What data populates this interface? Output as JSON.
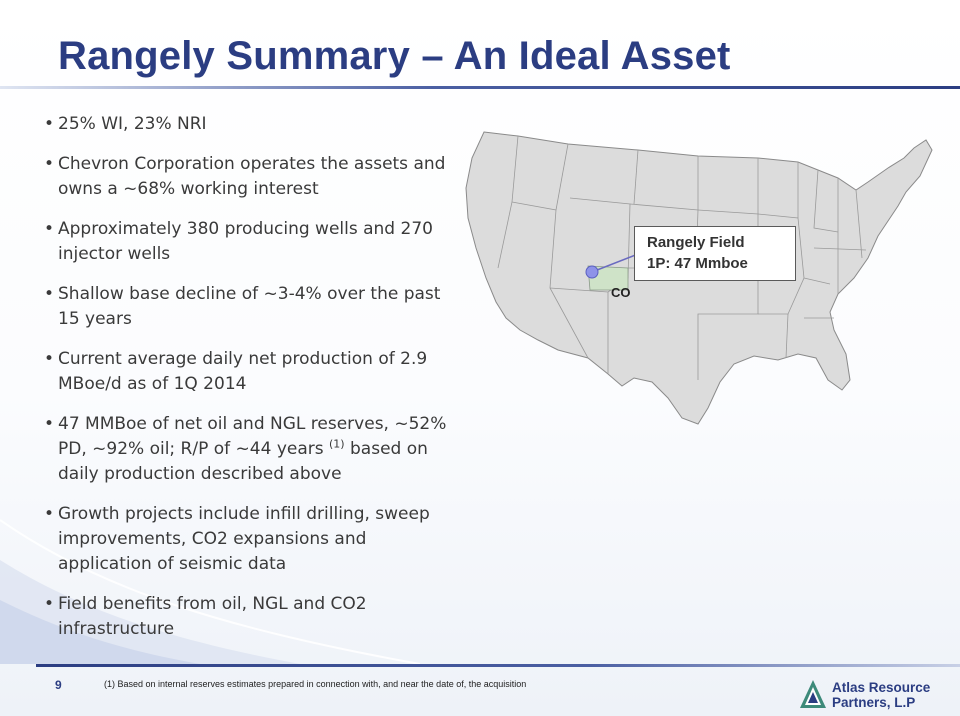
{
  "slide": {
    "title": "Rangely Summary – An Ideal Asset",
    "page_number": "9"
  },
  "bullets": [
    {
      "text": "25% WI, 23% NRI"
    },
    {
      "text": "Chevron Corporation operates the assets and owns a ~68% working interest"
    },
    {
      "text": "Approximately 380 producing wells and 270 injector wells"
    },
    {
      "text": "Shallow base decline of ~3-4% over the past 15 years"
    },
    {
      "text": "Current average daily net production of 2.9 MBoe/d as of 1Q 2014"
    },
    {
      "text_before": "47 MMBoe of net oil and NGL reserves, ~52% PD, ~92% oil; R/P of ~44 years",
      "footnote_ref": "(1)",
      "text_after": "based on daily production described above"
    },
    {
      "text": "Growth projects include infill drilling, sweep improvements, CO2 expansions and application of seismic data"
    },
    {
      "text": "Field benefits from oil, NGL and CO2 infrastructure"
    }
  ],
  "map": {
    "callout_line1": "Rangely Field",
    "callout_line2": "1P: 47 Mmboe",
    "state_label": "CO",
    "state_fill": "#dcdcdc",
    "highlight_fill": "#cfe3c8",
    "marker_color": "#8e93e8"
  },
  "footnote": "(1)   Based on internal reserves estimates prepared in connection with, and near the date of, the acquisition",
  "logo": {
    "line1": "Atlas Resource",
    "line2": "Partners, L.P"
  },
  "colors": {
    "title": "#2b3d82",
    "body_text": "#3a3a3a"
  }
}
